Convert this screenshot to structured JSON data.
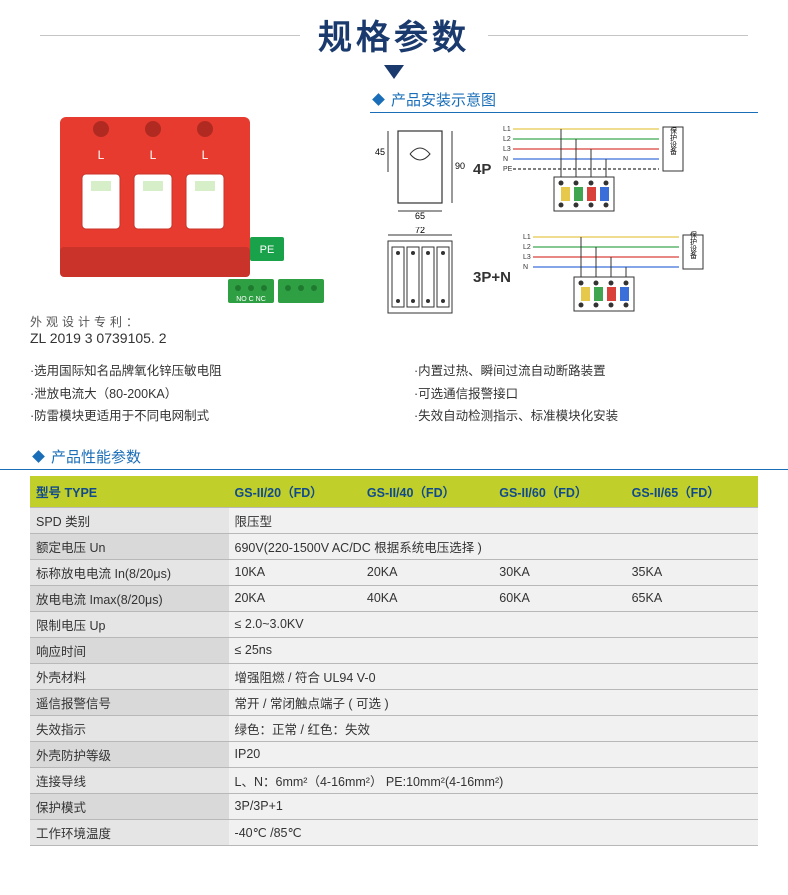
{
  "title": "规格参数",
  "patent": {
    "caption": "外观设计专利：",
    "number": "ZL 2019 3 0739105. 2"
  },
  "sections": {
    "install": "产品安装示意图",
    "spec": "产品性能参数"
  },
  "diagram_labels": {
    "four_p": "4P",
    "three_pn": "3P+N"
  },
  "dimensions": {
    "w1": "65",
    "h1": "45",
    "h1b": "90",
    "w2": "72"
  },
  "wiring_lines": [
    "L1",
    "L2",
    "L3",
    "N",
    "PE"
  ],
  "wiring_right": "保护设备",
  "features_left": [
    "·选用国际知名品牌氧化锌压敏电阻",
    "·泄放电流大（80-200KA）",
    "·防雷模块更适用于不同电网制式"
  ],
  "features_right": [
    "·内置过热、瞬间过流自动断路装置",
    "·可选通信报警接口",
    "·失效自动检测指示、标准模块化安装"
  ],
  "spec_headers": [
    "型号 TYPE",
    "GS-II/20（FD）",
    "GS-II/40（FD）",
    "GS-II/60（FD）",
    "GS-II/65（FD）"
  ],
  "spec_rows": [
    {
      "label": "SPD 类别",
      "values": [
        "限压型"
      ]
    },
    {
      "label": "额定电压 Un",
      "values": [
        "690V(220-1500V  AC/DC 根据系统电压选择 )"
      ]
    },
    {
      "label": "标称放电电流 In(8/20μs)",
      "values": [
        "10KA",
        "20KA",
        "30KA",
        "35KA"
      ]
    },
    {
      "label": "放电电流 Imax(8/20μs)",
      "values": [
        "20KA",
        "40KA",
        "60KA",
        "65KA"
      ]
    },
    {
      "label": "限制电压 Up",
      "values": [
        "≤ 2.0~3.0KV"
      ]
    },
    {
      "label": "响应时间",
      "values": [
        "≤ 25ns"
      ]
    },
    {
      "label": "外壳材料",
      "values": [
        "增强阻燃 / 符合 UL94 V-0"
      ]
    },
    {
      "label": "遥信报警信号",
      "values": [
        "常开 / 常闭触点端子 ( 可选 )"
      ]
    },
    {
      "label": "失效指示",
      "values": [
        "绿色：正常 / 红色：失效"
      ]
    },
    {
      "label": "外壳防护等级",
      "values": [
        "IP20"
      ]
    },
    {
      "label": "连接导线",
      "values": [
        "L、N：6mm²（4-16mm²）  PE:10mm²(4-16mm²)"
      ]
    },
    {
      "label": "保护模式",
      "values": [
        "3P/3P+1"
      ]
    },
    {
      "label": "工作环境温度",
      "values": [
        "-40℃ /85℃"
      ]
    }
  ],
  "colors": {
    "title": "#1a3a6e",
    "accent": "#1a6eb8",
    "header_bg": "#c1cf2a",
    "header_text": "#104a8e",
    "product_body": "#e63b2e",
    "pe": "#19a24a",
    "connector": "#2ea043",
    "line_L1": "#e6c84b",
    "line_L2": "#3fa64f",
    "line_L3": "#d9423a",
    "line_N": "#3a6fd9",
    "line_PE": "#333333"
  },
  "product_labels": {
    "L": "L",
    "PE": "PE",
    "term": "NO C NC"
  }
}
